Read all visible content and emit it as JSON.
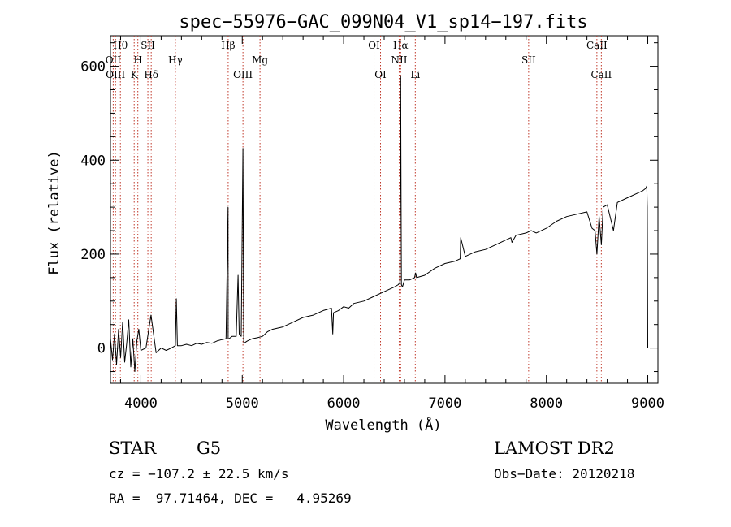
{
  "chart_data": {
    "type": "line",
    "title": "spec−55976−GAC_099N04_V1_sp14−197.fits",
    "xlabel": "Wavelength (Å)",
    "ylabel": "Flux (relative)",
    "xlim": [
      3700,
      9100
    ],
    "ylim": [
      -75,
      665
    ],
    "xticks": [
      4000,
      5000,
      6000,
      7000,
      8000,
      9000
    ],
    "yticks": [
      0,
      200,
      400,
      600
    ],
    "grid": false,
    "line_color": "#000000",
    "marker_color": "#c0392b",
    "series": [
      {
        "x": [
          3700,
          3720,
          3740,
          3760,
          3780,
          3800,
          3820,
          3840,
          3860,
          3880,
          3900,
          3920,
          3940,
          3960,
          3980,
          4000,
          4050,
          4100,
          4150,
          4200,
          4250,
          4300,
          4340,
          4350,
          4360,
          4400,
          4450,
          4500,
          4550,
          4600,
          4650,
          4700,
          4750,
          4800,
          4840,
          4860,
          4861,
          4870,
          4900,
          4940,
          4959,
          4970,
          4990,
          5007,
          5015,
          5050,
          5100,
          5150,
          5200,
          5250,
          5300,
          5400,
          5500,
          5600,
          5700,
          5800,
          5880,
          5893,
          5900,
          5950,
          6000,
          6050,
          6100,
          6200,
          6300,
          6400,
          6450,
          6500,
          6540,
          6555,
          6563,
          6570,
          6580,
          6600,
          6650,
          6700,
          6710,
          6720,
          6800,
          6900,
          7000,
          7100,
          7150,
          7155,
          7200,
          7300,
          7400,
          7500,
          7600,
          7650,
          7660,
          7700,
          7800,
          7850,
          7900,
          8000,
          8100,
          8200,
          8300,
          8400,
          8450,
          8480,
          8498,
          8520,
          8542,
          8560,
          8600,
          8662,
          8700,
          8800,
          8900,
          8950,
          8980,
          8990,
          8995,
          9000
        ],
        "values": [
          20,
          -25,
          30,
          -35,
          40,
          -20,
          55,
          -30,
          10,
          60,
          -40,
          20,
          -50,
          15,
          40,
          -5,
          0,
          70,
          -10,
          0,
          -5,
          0,
          5,
          105,
          5,
          5,
          8,
          5,
          10,
          8,
          12,
          10,
          15,
          18,
          20,
          300,
          20,
          20,
          25,
          25,
          155,
          30,
          25,
          425,
          10,
          15,
          20,
          22,
          25,
          35,
          40,
          45,
          55,
          65,
          70,
          80,
          85,
          30,
          75,
          80,
          88,
          85,
          95,
          100,
          110,
          120,
          125,
          130,
          135,
          140,
          580,
          135,
          130,
          145,
          145,
          150,
          160,
          150,
          155,
          170,
          180,
          185,
          190,
          235,
          195,
          205,
          210,
          220,
          230,
          235,
          225,
          240,
          245,
          250,
          245,
          255,
          270,
          280,
          285,
          290,
          255,
          250,
          200,
          280,
          220,
          300,
          305,
          250,
          310,
          320,
          330,
          335,
          340,
          345,
          300,
          0
        ]
      }
    ],
    "line_markers": [
      {
        "x": 3798,
        "label": "Hθ",
        "row": 0
      },
      {
        "x": 3727,
        "label": "OII",
        "row": 1
      },
      {
        "x": 3750,
        "label": "OIII",
        "row": 2
      },
      {
        "x": 3970,
        "label": "H",
        "row": 1
      },
      {
        "x": 3934,
        "label": "K",
        "row": 2
      },
      {
        "x": 4069,
        "label": "SII",
        "row": 0
      },
      {
        "x": 4102,
        "label": "Hδ",
        "row": 2
      },
      {
        "x": 4340,
        "label": "Hγ",
        "row": 1
      },
      {
        "x": 4861,
        "label": "Hβ",
        "row": 0
      },
      {
        "x": 5007,
        "label": "OIII",
        "row": 2
      },
      {
        "x": 5175,
        "label": "Mg",
        "row": 1
      },
      {
        "x": 6300,
        "label": "OI",
        "row": 0
      },
      {
        "x": 6364,
        "label": "OI",
        "row": 2
      },
      {
        "x": 6563,
        "label": "Hα",
        "row": 0
      },
      {
        "x": 6548,
        "label": "NII",
        "row": 1
      },
      {
        "x": 6707,
        "label": "Li",
        "row": 2
      },
      {
        "x": 7825,
        "label": "SII",
        "row": 1
      },
      {
        "x": 8498,
        "label": "CaII",
        "row": 0
      },
      {
        "x": 8542,
        "label": "CaII",
        "row": 2
      }
    ]
  },
  "info": {
    "object_class": "STAR",
    "subclass": "G5",
    "survey": "LAMOST DR2",
    "redshift": "cz = −107.2 ± 22.5 km/s",
    "obs_date": "Obs−Date: 20120218",
    "coords": "RA =  97.71464, DEC =   4.95269"
  }
}
